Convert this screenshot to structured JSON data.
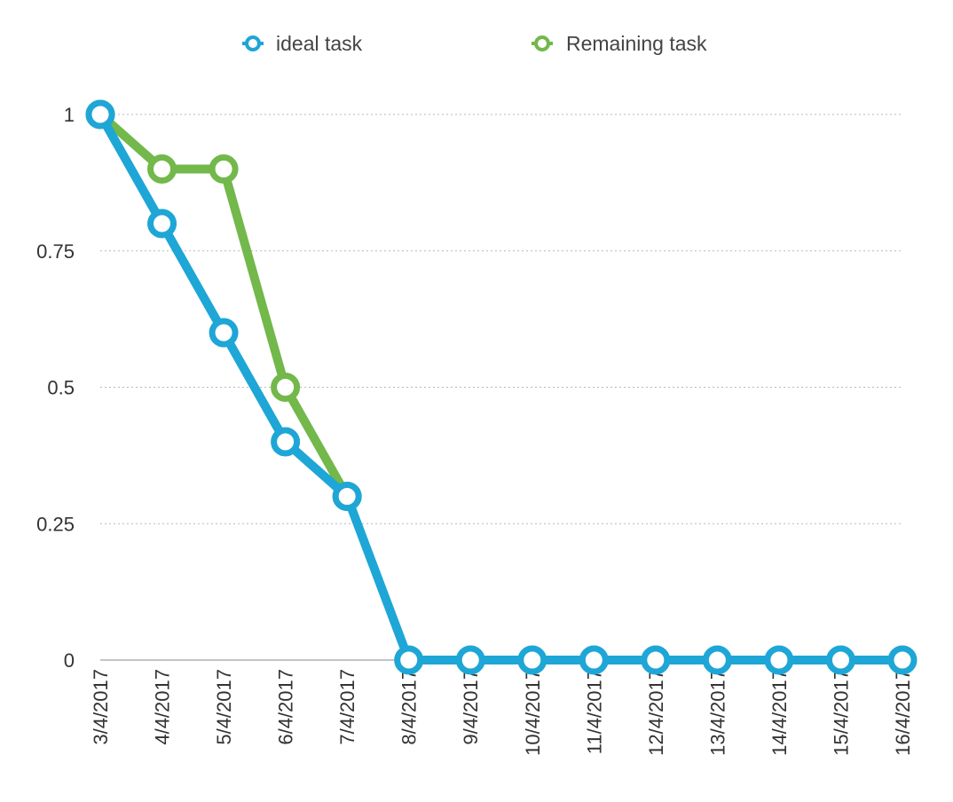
{
  "chart_data": {
    "type": "line",
    "categories": [
      "3/4/2017",
      "4/4/2017",
      "5/4/2017",
      "6/4/2017",
      "7/4/2017",
      "8/4/2017",
      "9/4/2017",
      "10/4/2017",
      "11/4/2017",
      "12/4/2017",
      "13/4/2017",
      "14/4/2017",
      "15/4/2017",
      "16/4/2017"
    ],
    "series": [
      {
        "name": "ideal task",
        "color": "#1ea6d6",
        "values": [
          1,
          0.8,
          0.6,
          0.4,
          0.3,
          0,
          0,
          0,
          0,
          0,
          0,
          0,
          0,
          0
        ]
      },
      {
        "name": "Remaining task",
        "color": "#72b84a",
        "values": [
          1,
          0.9,
          0.9,
          0.5,
          0.3,
          null,
          null,
          null,
          null,
          null,
          null,
          null,
          null,
          null
        ]
      }
    ],
    "y_ticks": [
      "0",
      "0.25",
      "0.5",
      "0.75",
      "1"
    ],
    "ylim": [
      0,
      1
    ],
    "grid": true,
    "legend_position": "top"
  }
}
